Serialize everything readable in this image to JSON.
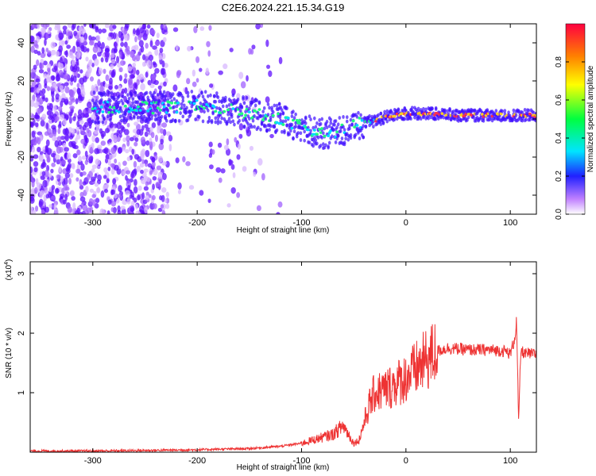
{
  "title": "C2E6.2024.221.15.34.G19",
  "chart_data": [
    {
      "type": "heatmap",
      "xlabel": "Height of straight line (km)",
      "ylabel": "Frequency (Hz)",
      "xlim": [
        -360,
        125
      ],
      "ylim": [
        -50,
        50
      ],
      "xticks": [
        -300,
        -200,
        -100,
        0,
        100
      ],
      "yticks": [
        -40,
        -20,
        0,
        20,
        40
      ],
      "colorbar": {
        "label": "Normalized spectral amplitude",
        "range": [
          0,
          1
        ],
        "ticks": [
          0.0,
          0.2,
          0.4,
          0.6,
          0.8
        ],
        "tick_labels": [
          "0.0",
          "0.2",
          "0.4",
          "0.6",
          "0.8"
        ],
        "colors": [
          "#ffffff",
          "#b040ff",
          "#2020ff",
          "#00e5ff",
          "#00ff40",
          "#ffff00",
          "#ff8000",
          "#ff0040"
        ]
      },
      "ridge": {
        "x": [
          -280,
          -240,
          -200,
          -170,
          -150,
          -120,
          -100,
          -80,
          -60,
          -50,
          -40,
          -30,
          -20,
          0,
          20,
          50,
          80,
          100,
          120
        ],
        "frequency": [
          6,
          6,
          7,
          5,
          3,
          0,
          -4,
          -8,
          -6,
          -3,
          -2,
          -1,
          1,
          3,
          3,
          2,
          2,
          2,
          2
        ]
      }
    },
    {
      "type": "line",
      "xlabel": "Height of straight line (km)",
      "ylabel": "SNR (10 * v/v)",
      "y_multiplier_label": "(x10",
      "y_multiplier_exp": "4",
      "xlim": [
        -360,
        125
      ],
      "ylim": [
        0,
        3.2
      ],
      "xticks": [
        -300,
        -200,
        -100,
        0,
        100
      ],
      "yticks": [
        1,
        2,
        3
      ],
      "series": [
        {
          "color": "#ee3333",
          "x": [
            -360,
            -300,
            -250,
            -200,
            -180,
            -150,
            -120,
            -100,
            -80,
            -70,
            -60,
            -55,
            -50,
            -45,
            -40,
            -35,
            -30,
            -20,
            -10,
            0,
            10,
            20,
            30,
            40,
            60,
            80,
            95,
            100,
            104,
            106,
            108,
            110,
            115,
            120,
            125
          ],
          "y": [
            0.02,
            0.02,
            0.03,
            0.04,
            0.05,
            0.06,
            0.1,
            0.15,
            0.25,
            0.3,
            0.45,
            0.3,
            0.15,
            0.2,
            0.5,
            0.8,
            1.0,
            1.05,
            1.15,
            1.25,
            1.4,
            1.55,
            1.7,
            1.75,
            1.72,
            1.72,
            1.7,
            1.65,
            1.9,
            2.2,
            0.5,
            1.7,
            1.65,
            1.65,
            1.65
          ]
        }
      ]
    }
  ]
}
